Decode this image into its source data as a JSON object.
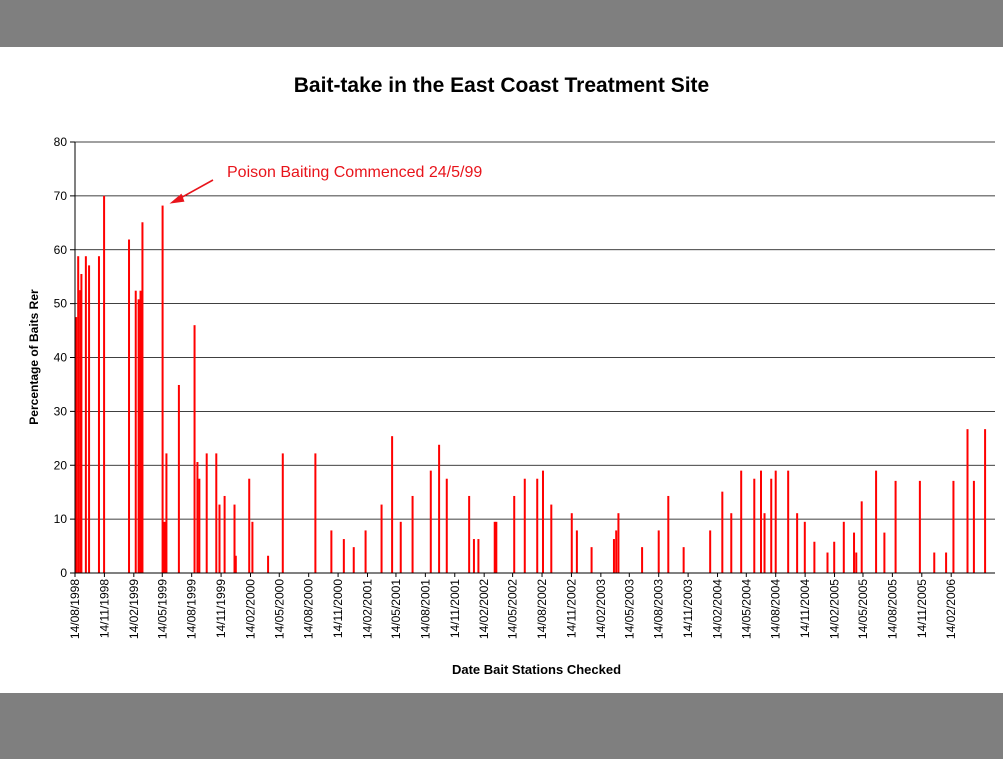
{
  "chart_data": {
    "type": "bar",
    "title": "Bait-take in the East Coast Treatment Site",
    "xlabel": "Date Bait Stations Checked",
    "ylabel": "Percentage of Baits Rer",
    "ylim": [
      0,
      80
    ],
    "yticks": [
      0,
      10,
      20,
      30,
      40,
      50,
      60,
      70,
      80
    ],
    "grid": true,
    "bar_color": "#ff0000",
    "xlim": [
      "1998-08-14",
      "2006-07-01"
    ],
    "xtick_labels": [
      "14/08/1998",
      "14/11/1998",
      "14/02/1999",
      "14/05/1999",
      "14/08/1999",
      "14/11/1999",
      "14/02/2000",
      "14/05/2000",
      "14/08/2000",
      "14/11/2000",
      "14/02/2001",
      "14/05/2001",
      "14/08/2001",
      "14/11/2001",
      "14/02/2002",
      "14/05/2002",
      "14/08/2002",
      "14/11/2002",
      "14/02/2003",
      "14/05/2003",
      "14/08/2003",
      "14/11/2003",
      "14/02/2004",
      "14/05/2004",
      "14/08/2004",
      "14/11/2004",
      "14/02/2005",
      "14/05/2005",
      "14/08/2005",
      "14/11/2005",
      "14/02/2006"
    ],
    "annotation": {
      "text": "Poison Baiting Commenced 24/5/99",
      "target_date": "1999-05-24",
      "target_value": 68
    },
    "points": [
      [
        "1998-08-18",
        47.5
      ],
      [
        "1998-08-24",
        58.8
      ],
      [
        "1998-08-30",
        52.5
      ],
      [
        "1998-09-03",
        55.5
      ],
      [
        "1998-09-17",
        58.8
      ],
      [
        "1998-09-27",
        57.1
      ],
      [
        "1998-10-28",
        58.8
      ],
      [
        "1998-11-13",
        70.0
      ],
      [
        "1999-01-30",
        61.9
      ],
      [
        "1999-02-20",
        52.4
      ],
      [
        "1999-03-01",
        50.8
      ],
      [
        "1999-03-07",
        52.4
      ],
      [
        "1999-03-13",
        65.1
      ],
      [
        "1999-05-15",
        68.2
      ],
      [
        "1999-05-21",
        9.5
      ],
      [
        "1999-05-27",
        22.2
      ],
      [
        "1999-07-05",
        34.9
      ],
      [
        "1999-08-23",
        46.0
      ],
      [
        "1999-09-01",
        20.6
      ],
      [
        "1999-09-07",
        17.5
      ],
      [
        "1999-09-30",
        22.2
      ],
      [
        "1999-10-30",
        22.2
      ],
      [
        "1999-11-09",
        12.7
      ],
      [
        "1999-11-25",
        14.3
      ],
      [
        "1999-12-26",
        12.7
      ],
      [
        "1999-12-30",
        3.2
      ],
      [
        "2000-02-10",
        17.5
      ],
      [
        "2000-02-20",
        9.5
      ],
      [
        "2000-04-09",
        3.2
      ],
      [
        "2000-05-25",
        22.2
      ],
      [
        "2000-09-04",
        22.2
      ],
      [
        "2000-10-24",
        7.9
      ],
      [
        "2000-12-02",
        6.3
      ],
      [
        "2001-01-02",
        4.8
      ],
      [
        "2001-02-08",
        7.9
      ],
      [
        "2001-03-30",
        12.7
      ],
      [
        "2001-05-02",
        25.4
      ],
      [
        "2001-05-29",
        9.5
      ],
      [
        "2001-07-05",
        14.3
      ],
      [
        "2001-08-31",
        19.0
      ],
      [
        "2001-09-26",
        23.8
      ],
      [
        "2001-10-20",
        17.5
      ],
      [
        "2001-12-29",
        14.3
      ],
      [
        "2002-01-13",
        6.3
      ],
      [
        "2002-01-27",
        6.3
      ],
      [
        "2002-03-19",
        9.5
      ],
      [
        "2002-03-24",
        9.5
      ],
      [
        "2002-05-19",
        14.3
      ],
      [
        "2002-06-21",
        17.5
      ],
      [
        "2002-07-30",
        17.5
      ],
      [
        "2002-08-17",
        19.0
      ],
      [
        "2002-09-12",
        12.7
      ],
      [
        "2002-11-15",
        11.1
      ],
      [
        "2002-12-01",
        7.9
      ],
      [
        "2003-01-16",
        4.8
      ],
      [
        "2003-03-27",
        6.3
      ],
      [
        "2003-04-03",
        7.9
      ],
      [
        "2003-04-10",
        11.1
      ],
      [
        "2003-06-23",
        4.8
      ],
      [
        "2003-08-14",
        7.9
      ],
      [
        "2003-09-13",
        14.3
      ],
      [
        "2003-10-31",
        4.8
      ],
      [
        "2004-01-22",
        7.9
      ],
      [
        "2004-02-29",
        15.1
      ],
      [
        "2004-03-28",
        11.1
      ],
      [
        "2004-04-28",
        19.0
      ],
      [
        "2004-06-08",
        17.5
      ],
      [
        "2004-06-29",
        19.0
      ],
      [
        "2004-07-10",
        11.1
      ],
      [
        "2004-07-31",
        17.5
      ],
      [
        "2004-08-14",
        19.0
      ],
      [
        "2004-09-22",
        19.0
      ],
      [
        "2004-10-20",
        11.1
      ],
      [
        "2004-11-13",
        9.5
      ],
      [
        "2004-12-13",
        5.8
      ],
      [
        "2005-01-23",
        3.8
      ],
      [
        "2005-02-13",
        5.8
      ],
      [
        "2005-03-15",
        9.5
      ],
      [
        "2005-04-16",
        7.5
      ],
      [
        "2005-04-23",
        3.8
      ],
      [
        "2005-05-10",
        13.3
      ],
      [
        "2005-06-24",
        19.0
      ],
      [
        "2005-07-20",
        7.5
      ],
      [
        "2005-08-24",
        17.1
      ],
      [
        "2005-11-08",
        17.1
      ],
      [
        "2005-12-23",
        3.8
      ],
      [
        "2006-01-29",
        3.8
      ],
      [
        "2006-02-21",
        17.1
      ],
      [
        "2006-04-06",
        26.7
      ],
      [
        "2006-04-26",
        17.1
      ],
      [
        "2006-05-31",
        26.7
      ]
    ]
  }
}
